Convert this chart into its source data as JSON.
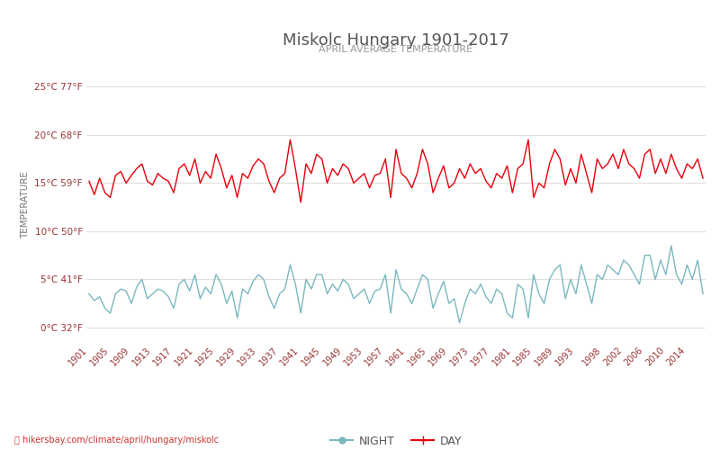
{
  "title": "Miskolc Hungary 1901-2017",
  "subtitle": "APRIL AVERAGE TEMPERATURE",
  "ylabel": "TEMPERATURE",
  "xlabel_url": "hikersbay.com/climate/april/hungary/miskolc",
  "years": [
    1901,
    1902,
    1903,
    1904,
    1905,
    1906,
    1907,
    1908,
    1909,
    1910,
    1911,
    1912,
    1913,
    1914,
    1915,
    1916,
    1917,
    1918,
    1919,
    1920,
    1921,
    1922,
    1923,
    1924,
    1925,
    1926,
    1927,
    1928,
    1929,
    1930,
    1931,
    1932,
    1933,
    1934,
    1935,
    1936,
    1937,
    1938,
    1939,
    1940,
    1941,
    1942,
    1943,
    1944,
    1945,
    1946,
    1947,
    1948,
    1949,
    1950,
    1951,
    1952,
    1953,
    1954,
    1955,
    1956,
    1957,
    1958,
    1959,
    1960,
    1961,
    1962,
    1963,
    1964,
    1965,
    1966,
    1967,
    1968,
    1969,
    1970,
    1971,
    1972,
    1973,
    1974,
    1975,
    1976,
    1977,
    1978,
    1979,
    1980,
    1981,
    1982,
    1983,
    1984,
    1985,
    1986,
    1987,
    1988,
    1989,
    1990,
    1991,
    1992,
    1993,
    1994,
    1995,
    1996,
    1997,
    1998,
    1999,
    2000,
    2001,
    2002,
    2003,
    2004,
    2005,
    2006,
    2007,
    2008,
    2009,
    2010,
    2011,
    2012,
    2013,
    2014,
    2015,
    2016,
    2017
  ],
  "day_temps": [
    15.2,
    13.8,
    15.5,
    14.0,
    13.5,
    15.8,
    16.2,
    15.0,
    15.8,
    16.5,
    17.0,
    15.2,
    14.8,
    16.0,
    15.5,
    15.2,
    14.0,
    16.5,
    17.0,
    15.8,
    17.5,
    15.0,
    16.2,
    15.5,
    18.0,
    16.5,
    14.5,
    15.8,
    13.5,
    16.0,
    15.5,
    16.8,
    17.5,
    17.0,
    15.2,
    14.0,
    15.5,
    16.0,
    19.5,
    16.5,
    13.0,
    17.0,
    16.0,
    18.0,
    17.5,
    15.0,
    16.5,
    15.8,
    17.0,
    16.5,
    15.0,
    15.5,
    16.0,
    14.5,
    15.8,
    16.0,
    17.5,
    13.5,
    18.5,
    16.0,
    15.5,
    14.5,
    16.0,
    18.5,
    17.0,
    14.0,
    15.5,
    16.8,
    14.5,
    15.0,
    16.5,
    15.5,
    17.0,
    16.0,
    16.5,
    15.2,
    14.5,
    16.0,
    15.5,
    16.8,
    14.0,
    16.5,
    17.0,
    19.5,
    13.5,
    15.0,
    14.5,
    17.0,
    18.5,
    17.5,
    14.8,
    16.5,
    15.0,
    18.0,
    16.0,
    14.0,
    17.5,
    16.5,
    17.0,
    18.0,
    16.5,
    18.5,
    17.0,
    16.5,
    15.5,
    18.0,
    18.5,
    16.0,
    17.5,
    16.0,
    18.0,
    16.5,
    15.5,
    17.0,
    16.5,
    17.5,
    15.5
  ],
  "night_temps": [
    3.5,
    2.8,
    3.2,
    2.0,
    1.5,
    3.5,
    4.0,
    3.8,
    2.5,
    4.2,
    5.0,
    3.0,
    3.5,
    4.0,
    3.8,
    3.2,
    2.0,
    4.5,
    5.0,
    3.8,
    5.5,
    3.0,
    4.2,
    3.5,
    5.5,
    4.5,
    2.5,
    3.8,
    1.0,
    4.0,
    3.5,
    4.8,
    5.5,
    5.0,
    3.2,
    2.0,
    3.5,
    4.0,
    6.5,
    4.5,
    1.5,
    5.0,
    4.0,
    5.5,
    5.5,
    3.5,
    4.5,
    3.8,
    5.0,
    4.5,
    3.0,
    3.5,
    4.0,
    2.5,
    3.8,
    4.0,
    5.5,
    1.5,
    6.0,
    4.0,
    3.5,
    2.5,
    4.0,
    5.5,
    5.0,
    2.0,
    3.5,
    4.8,
    2.5,
    3.0,
    0.5,
    2.5,
    4.0,
    3.5,
    4.5,
    3.2,
    2.5,
    4.0,
    3.5,
    1.5,
    1.0,
    4.5,
    4.0,
    1.0,
    5.5,
    3.5,
    2.5,
    5.0,
    6.0,
    6.5,
    3.0,
    5.0,
    3.5,
    6.5,
    4.5,
    2.5,
    5.5,
    5.0,
    6.5,
    6.0,
    5.5,
    7.0,
    6.5,
    5.5,
    4.5,
    7.5,
    7.5,
    5.0,
    7.0,
    5.5,
    8.5,
    5.5,
    4.5,
    6.5,
    5.0,
    7.0,
    3.5
  ],
  "xtick_years": [
    1901,
    1905,
    1909,
    1913,
    1917,
    1921,
    1925,
    1929,
    1933,
    1937,
    1941,
    1945,
    1949,
    1953,
    1957,
    1961,
    1965,
    1969,
    1973,
    1977,
    1981,
    1985,
    1989,
    1993,
    1998,
    2002,
    2006,
    2010,
    2014
  ],
  "yticks_c": [
    0,
    5,
    10,
    15,
    20,
    25
  ],
  "ytick_labels": [
    "0°C 32°F",
    "5°C 41°F",
    "10°C 50°F",
    "15°C 59°F",
    "20°C 68°F",
    "25°C 77°F"
  ],
  "ylim": [
    -1.5,
    27
  ],
  "day_color": "#e8000d",
  "night_color": "#7ab8c0",
  "background_color": "#ffffff",
  "grid_color": "#e0e0e0",
  "title_color": "#555555",
  "subtitle_color": "#999999",
  "ylabel_color": "#777777",
  "tick_label_color": "#993333",
  "url_color": "#cc3333",
  "url_icon_color": "#ff6600",
  "legend_night": "NIGHT",
  "legend_day": "DAY"
}
